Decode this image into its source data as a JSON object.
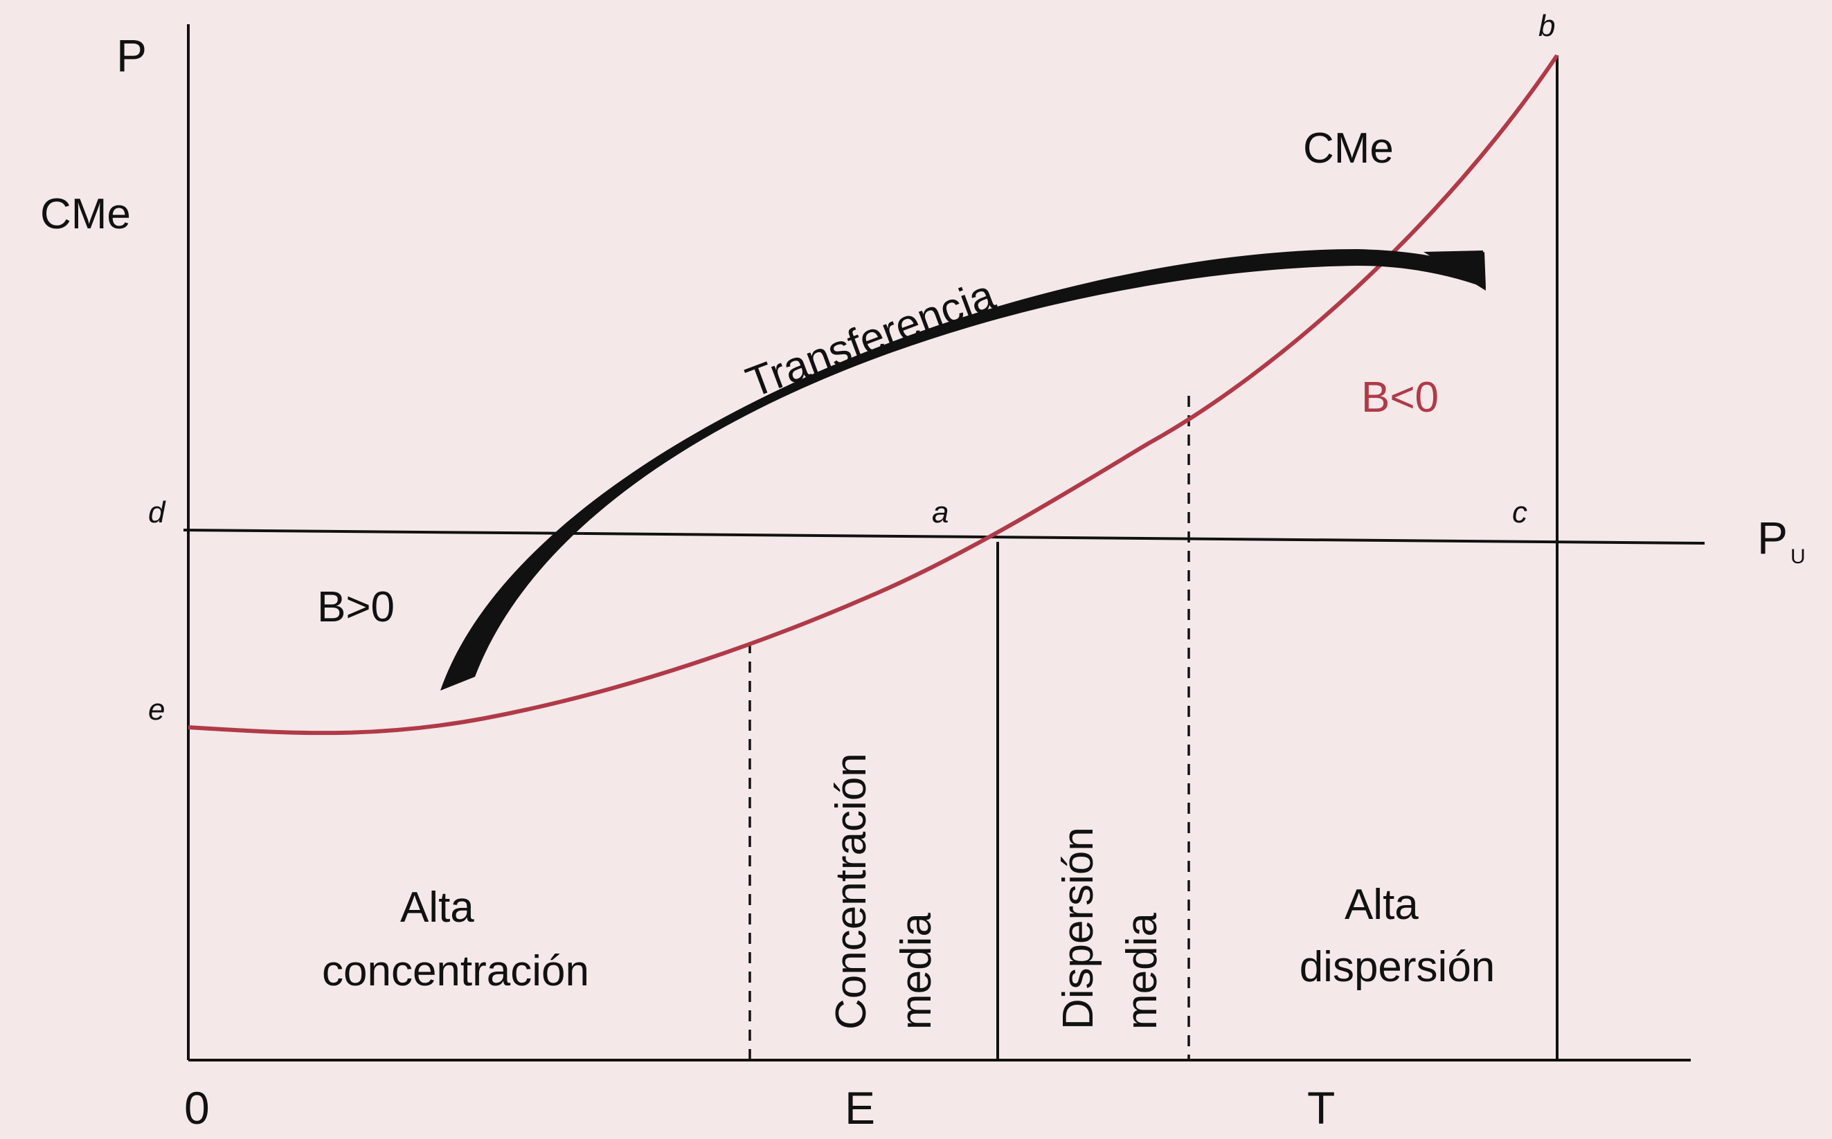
{
  "axes": {
    "y_label": "P",
    "origin": "0",
    "x_tick_e": "E",
    "x_tick_t": "T"
  },
  "curve": {
    "left_label": "CMe",
    "right_label": "CMe",
    "color": "#b03a48"
  },
  "price_line": {
    "label": "P",
    "subscript": "U"
  },
  "points": {
    "a": "a",
    "b": "b",
    "c": "c",
    "d": "d",
    "e": "e"
  },
  "transfer_arrow": {
    "label": "Transferencia"
  },
  "profit": {
    "positive": "B>0",
    "negative": "B<0"
  },
  "regions": {
    "alta_concentracion": [
      "Alta",
      "concentración"
    ],
    "concentracion_media": [
      "Concentración",
      "media"
    ],
    "dispersion_media": [
      "Dispersión",
      "media"
    ],
    "alta_dispersion": [
      "Alta",
      "dispersión"
    ]
  }
}
